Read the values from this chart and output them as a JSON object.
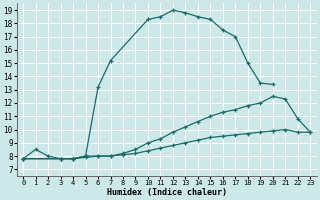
{
  "xlabel": "Humidex (Indice chaleur)",
  "bg_color": "#cde8e8",
  "grid_color": "#b8d8d8",
  "line_color": "#1a6b6b",
  "xlim": [
    -0.5,
    23.5
  ],
  "ylim": [
    6.5,
    19.5
  ],
  "xticks": [
    0,
    1,
    2,
    3,
    4,
    5,
    6,
    7,
    8,
    9,
    10,
    11,
    12,
    13,
    14,
    15,
    16,
    17,
    18,
    19,
    20,
    21,
    22,
    23
  ],
  "yticks": [
    7,
    8,
    9,
    10,
    11,
    12,
    13,
    14,
    15,
    16,
    17,
    18,
    19
  ],
  "series": [
    {
      "x": [
        0,
        1,
        2,
        3,
        4,
        5,
        6,
        7,
        10,
        11,
        12,
        13,
        14,
        15,
        16,
        17,
        18,
        19,
        20
      ],
      "y": [
        7.8,
        8.5,
        8.0,
        7.8,
        7.8,
        8.0,
        13.2,
        15.2,
        18.3,
        18.5,
        19.0,
        18.8,
        18.5,
        18.3,
        17.5,
        17.0,
        15.0,
        13.5,
        13.4
      ]
    },
    {
      "x": [
        0,
        3,
        4,
        5,
        6,
        7,
        8,
        9,
        10,
        11,
        12,
        13,
        14,
        15,
        16,
        17,
        18,
        19,
        20,
        21,
        22,
        23
      ],
      "y": [
        7.8,
        7.8,
        7.8,
        8.0,
        8.0,
        8.0,
        8.2,
        8.5,
        9.0,
        9.3,
        9.8,
        10.2,
        10.6,
        11.0,
        11.3,
        11.5,
        11.8,
        12.0,
        12.5,
        12.3,
        10.8,
        9.8
      ]
    },
    {
      "x": [
        0,
        3,
        4,
        5,
        6,
        7,
        8,
        9,
        10,
        11,
        12,
        13,
        14,
        15,
        16,
        17,
        18,
        19,
        20,
        21,
        22,
        23
      ],
      "y": [
        7.8,
        7.8,
        7.8,
        7.9,
        8.0,
        8.0,
        8.1,
        8.2,
        8.4,
        8.6,
        8.8,
        9.0,
        9.2,
        9.4,
        9.5,
        9.6,
        9.7,
        9.8,
        9.9,
        10.0,
        9.8,
        9.8
      ]
    }
  ]
}
